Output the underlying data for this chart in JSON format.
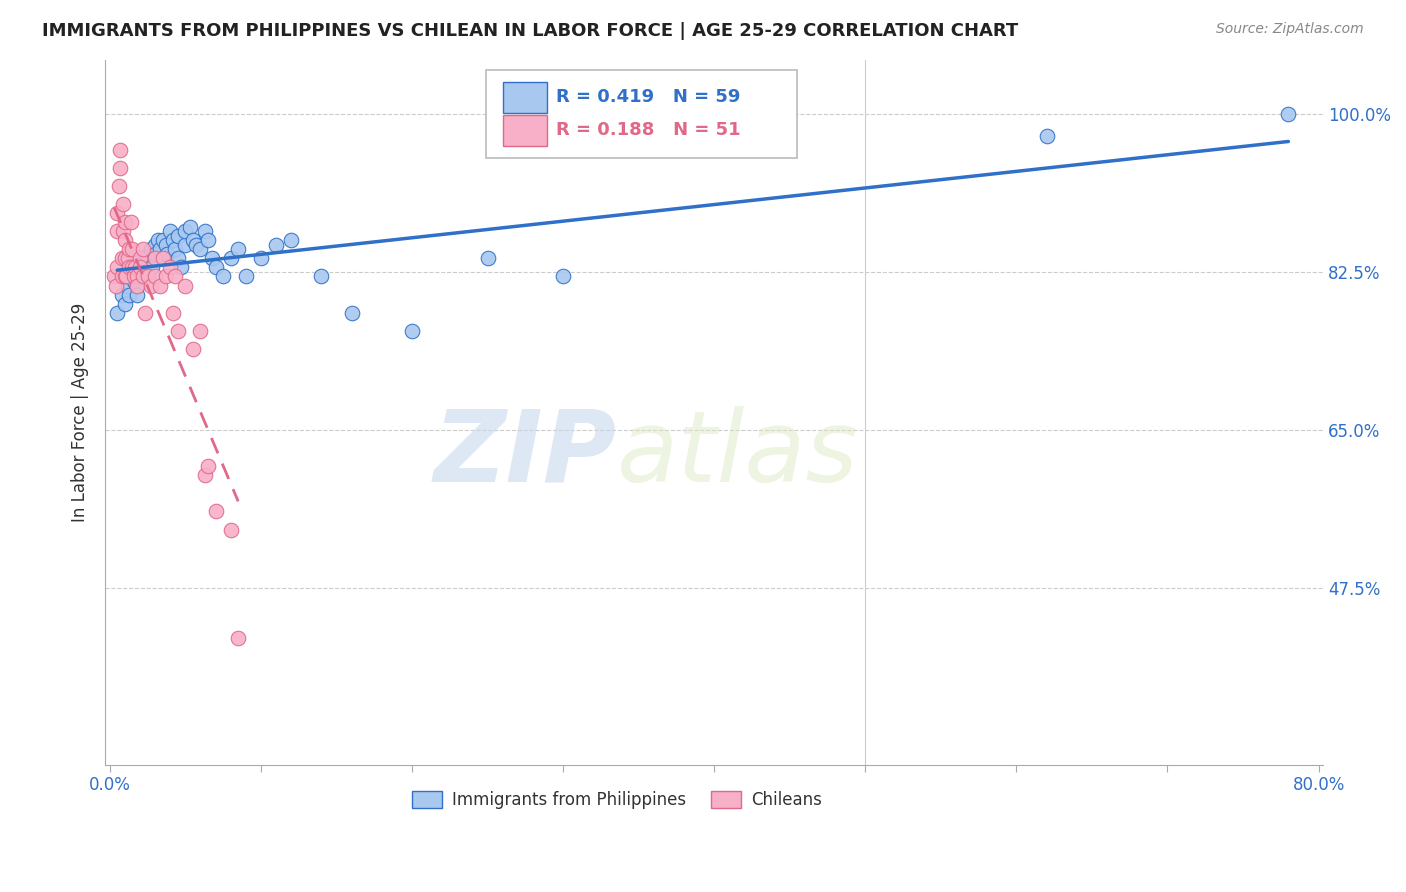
{
  "title": "IMMIGRANTS FROM PHILIPPINES VS CHILEAN IN LABOR FORCE | AGE 25-29 CORRELATION CHART",
  "source": "Source: ZipAtlas.com",
  "ylabel": "In Labor Force | Age 25-29",
  "ytick_labels": [
    "100.0%",
    "82.5%",
    "65.0%",
    "47.5%"
  ],
  "ytick_values": [
    1.0,
    0.825,
    0.65,
    0.475
  ],
  "xlim": [
    0.0,
    0.8
  ],
  "ylim": [
    0.28,
    1.06
  ],
  "blue_R": 0.419,
  "blue_N": 59,
  "pink_R": 0.188,
  "pink_N": 51,
  "blue_label": "Immigrants from Philippines",
  "pink_label": "Chileans",
  "watermark_zip": "ZIP",
  "watermark_atlas": "atlas",
  "blue_color": "#a8c8f0",
  "pink_color": "#f8b0c8",
  "blue_line_color": "#3070c8",
  "pink_line_color": "#e06888",
  "blue_x": [
    0.005,
    0.008,
    0.01,
    0.01,
    0.012,
    0.013,
    0.015,
    0.015,
    0.016,
    0.017,
    0.018,
    0.018,
    0.02,
    0.02,
    0.02,
    0.022,
    0.023,
    0.025,
    0.025,
    0.027,
    0.028,
    0.03,
    0.03,
    0.032,
    0.033,
    0.035,
    0.035,
    0.037,
    0.038,
    0.04,
    0.042,
    0.043,
    0.045,
    0.045,
    0.047,
    0.05,
    0.05,
    0.053,
    0.055,
    0.057,
    0.06,
    0.063,
    0.065,
    0.068,
    0.07,
    0.075,
    0.08,
    0.085,
    0.09,
    0.1,
    0.11,
    0.12,
    0.14,
    0.16,
    0.2,
    0.25,
    0.3,
    0.62,
    0.78
  ],
  "blue_y": [
    0.78,
    0.8,
    0.79,
    0.82,
    0.81,
    0.8,
    0.83,
    0.82,
    0.815,
    0.825,
    0.81,
    0.8,
    0.84,
    0.83,
    0.82,
    0.835,
    0.825,
    0.845,
    0.84,
    0.85,
    0.83,
    0.855,
    0.845,
    0.86,
    0.85,
    0.86,
    0.84,
    0.855,
    0.845,
    0.87,
    0.86,
    0.85,
    0.865,
    0.84,
    0.83,
    0.855,
    0.87,
    0.875,
    0.86,
    0.855,
    0.85,
    0.87,
    0.86,
    0.84,
    0.83,
    0.82,
    0.84,
    0.85,
    0.82,
    0.84,
    0.855,
    0.86,
    0.82,
    0.78,
    0.76,
    0.84,
    0.82,
    0.975,
    1.0
  ],
  "pink_x": [
    0.003,
    0.004,
    0.005,
    0.005,
    0.005,
    0.006,
    0.007,
    0.007,
    0.008,
    0.008,
    0.009,
    0.009,
    0.01,
    0.01,
    0.01,
    0.01,
    0.011,
    0.012,
    0.013,
    0.013,
    0.014,
    0.015,
    0.015,
    0.016,
    0.017,
    0.018,
    0.018,
    0.02,
    0.02,
    0.022,
    0.022,
    0.023,
    0.025,
    0.027,
    0.03,
    0.03,
    0.033,
    0.035,
    0.037,
    0.04,
    0.042,
    0.043,
    0.045,
    0.05,
    0.055,
    0.06,
    0.063,
    0.065,
    0.07,
    0.08,
    0.085
  ],
  "pink_y": [
    0.82,
    0.81,
    0.83,
    0.87,
    0.89,
    0.92,
    0.94,
    0.96,
    0.82,
    0.84,
    0.87,
    0.9,
    0.82,
    0.84,
    0.86,
    0.88,
    0.82,
    0.84,
    0.85,
    0.83,
    0.88,
    0.83,
    0.85,
    0.82,
    0.83,
    0.82,
    0.81,
    0.84,
    0.83,
    0.85,
    0.82,
    0.78,
    0.82,
    0.81,
    0.84,
    0.82,
    0.81,
    0.84,
    0.82,
    0.83,
    0.78,
    0.82,
    0.76,
    0.81,
    0.74,
    0.76,
    0.6,
    0.61,
    0.56,
    0.54,
    0.42
  ]
}
